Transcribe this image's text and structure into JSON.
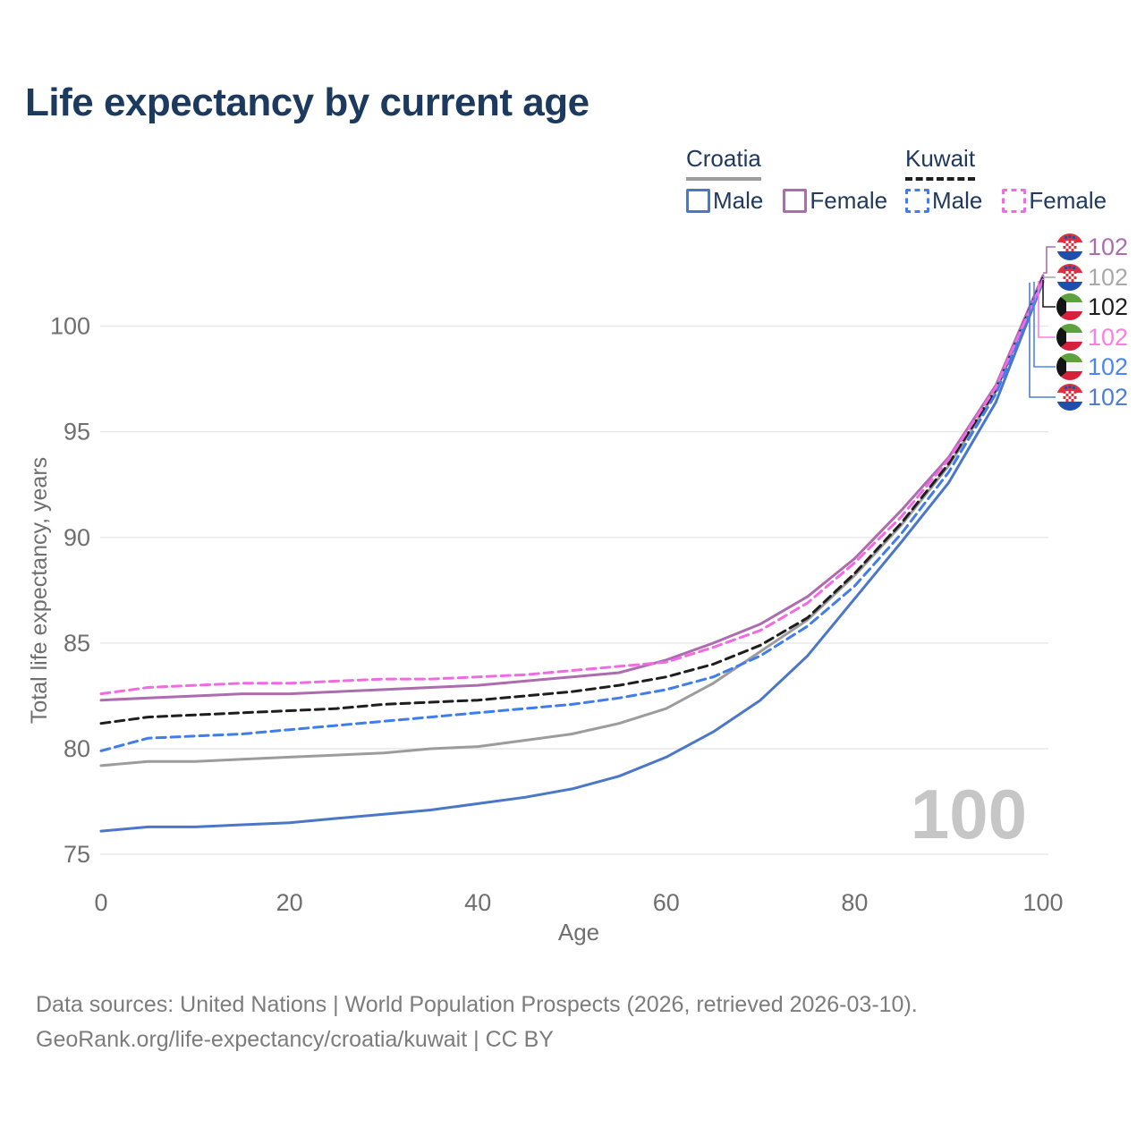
{
  "header": {
    "title": "Life expectancy by current age"
  },
  "legend": {
    "groups": [
      {
        "country": "Croatia",
        "underline_style": "solid",
        "underline_color": "#9c9c9c",
        "items": [
          {
            "label": "Male",
            "color": "#4a77c8",
            "dashed": false
          },
          {
            "label": "Female",
            "color": "#ad6cae",
            "dashed": false
          }
        ]
      },
      {
        "country": "Kuwait",
        "underline_style": "dashed",
        "underline_color": "#1e1e1e",
        "items": [
          {
            "label": "Male",
            "color": "#3f7ded",
            "dashed": true
          },
          {
            "label": "Female",
            "color": "#f26ae3",
            "dashed": true
          }
        ]
      }
    ]
  },
  "chart_data": {
    "type": "line",
    "title": "Life expectancy by current age",
    "xlabel": "Age",
    "ylabel": "Total life expectancy, years",
    "xlim": [
      0,
      100
    ],
    "ylim": [
      74,
      103
    ],
    "xticks": [
      0,
      20,
      40,
      60,
      80,
      100
    ],
    "yticks": [
      75,
      80,
      85,
      90,
      95,
      100
    ],
    "grid": "horizontal-only",
    "legend_position": "top-right",
    "watermark": "100",
    "x": [
      0,
      5,
      10,
      15,
      20,
      25,
      30,
      35,
      40,
      45,
      50,
      55,
      60,
      65,
      70,
      75,
      80,
      85,
      90,
      95,
      100
    ],
    "series": [
      {
        "name": "Croatia",
        "country": "Croatia",
        "group": "Total",
        "color": "#9c9c9c",
        "dashed": false,
        "values": [
          79.2,
          79.4,
          79.4,
          79.5,
          79.6,
          79.7,
          79.8,
          80.0,
          80.1,
          80.4,
          80.7,
          81.2,
          81.9,
          83.1,
          84.6,
          86.1,
          88.2,
          90.6,
          93.4,
          96.9,
          102.3
        ]
      },
      {
        "name": "Croatia Male",
        "country": "Croatia",
        "group": "Male",
        "color": "#4a77c8",
        "dashed": false,
        "values": [
          76.1,
          76.3,
          76.3,
          76.4,
          76.5,
          76.7,
          76.9,
          77.1,
          77.4,
          77.7,
          78.1,
          78.7,
          79.6,
          80.8,
          82.3,
          84.4,
          87.1,
          89.8,
          92.6,
          96.4,
          102.1
        ]
      },
      {
        "name": "Croatia Female",
        "country": "Croatia",
        "group": "Female",
        "color": "#ad6cae",
        "dashed": false,
        "values": [
          82.3,
          82.4,
          82.5,
          82.6,
          82.6,
          82.7,
          82.8,
          82.9,
          83.0,
          83.2,
          83.4,
          83.6,
          84.2,
          85.0,
          85.9,
          87.2,
          89.0,
          91.3,
          93.8,
          97.2,
          102.4
        ]
      },
      {
        "name": "Kuwait",
        "country": "Kuwait",
        "group": "Total",
        "color": "#1e1e1e",
        "dashed": true,
        "values": [
          81.2,
          81.5,
          81.6,
          81.7,
          81.8,
          81.9,
          82.1,
          82.2,
          82.3,
          82.5,
          82.7,
          83.0,
          83.4,
          84.0,
          84.9,
          86.2,
          88.3,
          90.7,
          93.5,
          97.0,
          102.3
        ]
      },
      {
        "name": "Kuwait Male",
        "country": "Kuwait",
        "group": "Male",
        "color": "#3f7ded",
        "dashed": true,
        "values": [
          79.9,
          80.5,
          80.6,
          80.7,
          80.9,
          81.1,
          81.3,
          81.5,
          81.7,
          81.9,
          82.1,
          82.4,
          82.8,
          83.4,
          84.4,
          85.8,
          87.7,
          90.2,
          93.1,
          96.8,
          102.2
        ]
      },
      {
        "name": "Kuwait Female",
        "country": "Kuwait",
        "group": "Female",
        "color": "#f26ae3",
        "dashed": true,
        "values": [
          82.6,
          82.9,
          83.0,
          83.1,
          83.1,
          83.2,
          83.3,
          83.3,
          83.4,
          83.5,
          83.7,
          83.9,
          84.1,
          84.8,
          85.6,
          86.9,
          88.8,
          91.0,
          93.7,
          97.1,
          102.2
        ]
      }
    ],
    "end_labels": [
      {
        "series": "Croatia Female",
        "flag": "croatia",
        "value": "102",
        "color": "#ad6cae"
      },
      {
        "series": "Croatia",
        "flag": "croatia",
        "value": "102",
        "color": "#a9a9a9"
      },
      {
        "series": "Kuwait",
        "flag": "kuwait",
        "value": "102",
        "color": "#1e1e1e"
      },
      {
        "series": "Kuwait Female",
        "flag": "kuwait",
        "value": "102",
        "color": "#fa7fe0"
      },
      {
        "series": "Kuwait Male",
        "flag": "kuwait",
        "value": "102",
        "color": "#4b87f2"
      },
      {
        "series": "Croatia Male",
        "flag": "croatia",
        "value": "102",
        "color": "#4f7dd2"
      }
    ]
  },
  "flag_colors": {
    "croatia": {
      "red": "#dd3140",
      "white": "#ffffff",
      "blue": "#1d4fae"
    },
    "kuwait": {
      "green": "#5ea13f",
      "white": "#f5f5f5",
      "red": "#d6213c",
      "black": "#141414"
    }
  },
  "style_colors": {
    "title": "#1c3a5e",
    "axis_text": "#6f6f6f",
    "gridline": "#e7e7e7",
    "watermark": "#c6c6c6",
    "footer": "#7c7c7c"
  },
  "footer": {
    "line1": "Data sources: United Nations | World Population Prospects (2026, retrieved 2026-03-10).",
    "line2": "GeoRank.org/life-expectancy/croatia/kuwait | CC BY"
  }
}
